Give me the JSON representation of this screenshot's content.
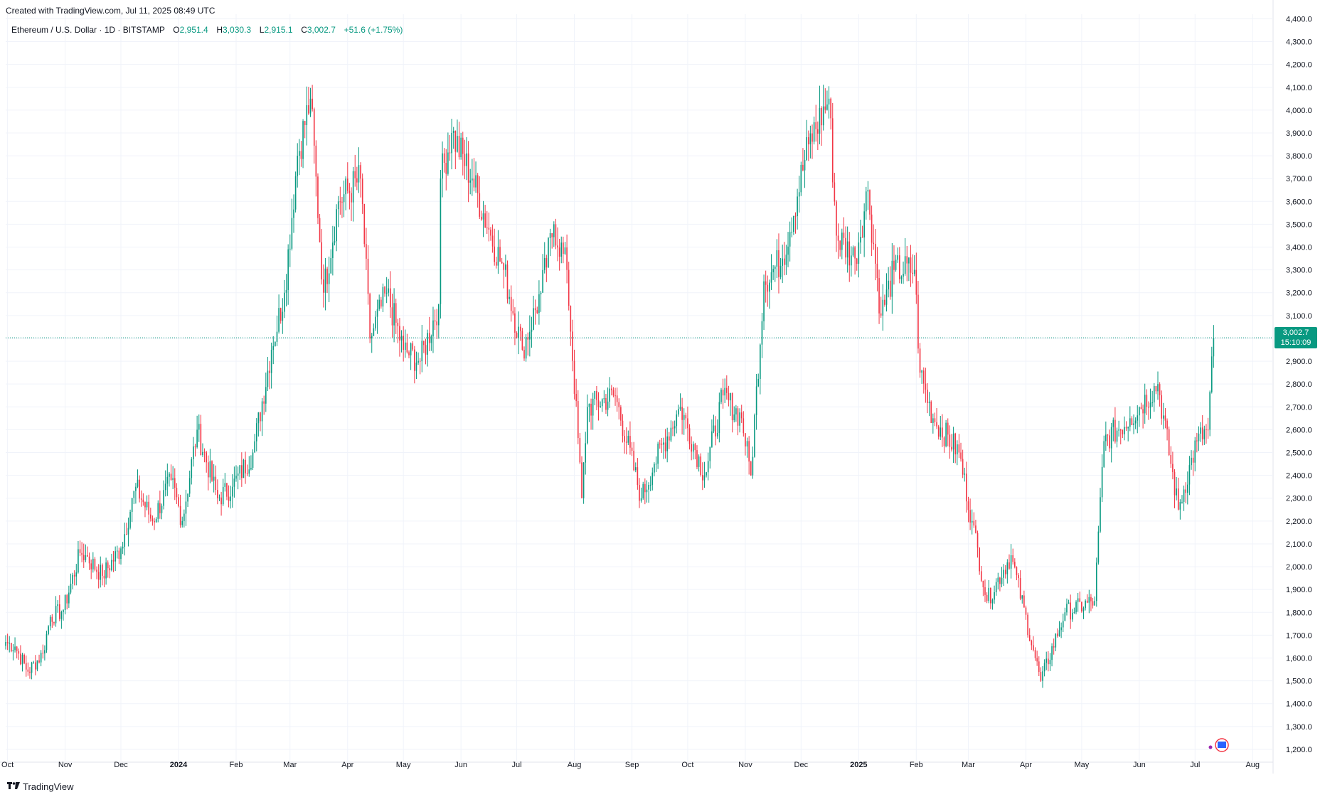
{
  "header": {
    "created_text": "Created with TradingView.com, Jul 11, 2025 08:49 UTC"
  },
  "legend": {
    "symbol": "Ethereum / U.S. Dollar · 1D · BITSTAMP",
    "open_label": "O",
    "open": "2,951.4",
    "high_label": "H",
    "high": "3,030.3",
    "low_label": "L",
    "low": "2,915.1",
    "close_label": "C",
    "close": "3,002.7",
    "change": "+51.6 (+1.75%)"
  },
  "price_badge": {
    "price": "3,002.7",
    "countdown": "15:10:09"
  },
  "footer": {
    "brand": "TradingView"
  },
  "colors": {
    "up": "#089981",
    "down": "#f23645",
    "grid": "#f0f3fa",
    "last_price_line": "#089981"
  },
  "chart_data": {
    "type": "candlestick",
    "symbol": "ETHUSD",
    "exchange": "BITSTAMP",
    "interval": "1D",
    "ylim": [
      1150,
      4420
    ],
    "y_ticks": [
      "4,400.0",
      "4,300.0",
      "4,200.0",
      "4,100.0",
      "4,000.0",
      "3,900.0",
      "3,800.0",
      "3,700.0",
      "3,600.0",
      "3,500.0",
      "3,400.0",
      "3,300.0",
      "3,200.0",
      "3,100.0",
      "3,000.0",
      "2,900.0",
      "2,800.0",
      "2,700.0",
      "2,600.0",
      "2,500.0",
      "2,400.0",
      "2,300.0",
      "2,200.0",
      "2,100.0",
      "2,000.0",
      "1,900.0",
      "1,800.0",
      "1,700.0",
      "1,600.0",
      "1,500.0",
      "1,400.0",
      "1,300.0",
      "1,200.0"
    ],
    "x_ticks": [
      {
        "label": "Oct",
        "date": "2023-10-01"
      },
      {
        "label": "Nov",
        "date": "2023-11-01"
      },
      {
        "label": "Dec",
        "date": "2023-12-01"
      },
      {
        "label": "2024",
        "date": "2024-01-01",
        "bold": true
      },
      {
        "label": "Feb",
        "date": "2024-02-01"
      },
      {
        "label": "Mar",
        "date": "2024-03-01"
      },
      {
        "label": "Apr",
        "date": "2024-04-01"
      },
      {
        "label": "May",
        "date": "2024-05-01"
      },
      {
        "label": "Jun",
        "date": "2024-06-01"
      },
      {
        "label": "Jul",
        "date": "2024-07-01"
      },
      {
        "label": "Aug",
        "date": "2024-08-01"
      },
      {
        "label": "Sep",
        "date": "2024-09-01"
      },
      {
        "label": "Oct",
        "date": "2024-10-01"
      },
      {
        "label": "Nov",
        "date": "2024-11-01"
      },
      {
        "label": "Dec",
        "date": "2024-12-01"
      },
      {
        "label": "2025",
        "date": "2025-01-01",
        "bold": true
      },
      {
        "label": "Feb",
        "date": "2025-02-01"
      },
      {
        "label": "Mar",
        "date": "2025-03-01"
      },
      {
        "label": "Apr",
        "date": "2025-04-01"
      },
      {
        "label": "May",
        "date": "2025-05-01"
      },
      {
        "label": "Jun",
        "date": "2025-06-01"
      },
      {
        "label": "Jul",
        "date": "2025-07-01"
      },
      {
        "label": "Aug",
        "date": "2025-08-01"
      }
    ],
    "first_date": "2023-09-30",
    "last_date": "2025-07-11",
    "last_price": 3002.7,
    "close_anchors": [
      [
        "2023-09-30",
        1670
      ],
      [
        "2023-10-05",
        1650
      ],
      [
        "2023-10-12",
        1540
      ],
      [
        "2023-10-20",
        1620
      ],
      [
        "2023-10-24",
        1780
      ],
      [
        "2023-10-31",
        1810
      ],
      [
        "2023-11-09",
        2060
      ],
      [
        "2023-11-12",
        2050
      ],
      [
        "2023-11-21",
        1960
      ],
      [
        "2023-12-01",
        2080
      ],
      [
        "2023-12-09",
        2350
      ],
      [
        "2023-12-18",
        2200
      ],
      [
        "2023-12-28",
        2380
      ],
      [
        "2024-01-03",
        2200
      ],
      [
        "2024-01-11",
        2600
      ],
      [
        "2024-01-22",
        2300
      ],
      [
        "2024-01-30",
        2350
      ],
      [
        "2024-02-10",
        2500
      ],
      [
        "2024-02-20",
        2950
      ],
      [
        "2024-02-27",
        3200
      ],
      [
        "2024-03-05",
        3800
      ],
      [
        "2024-03-12",
        4050
      ],
      [
        "2024-03-19",
        3200
      ],
      [
        "2024-03-27",
        3600
      ],
      [
        "2024-04-08",
        3700
      ],
      [
        "2024-04-13",
        3000
      ],
      [
        "2024-04-22",
        3200
      ],
      [
        "2024-05-01",
        2950
      ],
      [
        "2024-05-10",
        2900
      ],
      [
        "2024-05-20",
        3150
      ],
      [
        "2024-05-21",
        3700
      ],
      [
        "2024-05-27",
        3900
      ],
      [
        "2024-06-07",
        3700
      ],
      [
        "2024-06-17",
        3450
      ],
      [
        "2024-06-24",
        3300
      ],
      [
        "2024-07-04",
        2950
      ],
      [
        "2024-07-14",
        3200
      ],
      [
        "2024-07-21",
        3500
      ],
      [
        "2024-07-28",
        3300
      ],
      [
        "2024-08-05",
        2300
      ],
      [
        "2024-08-08",
        2700
      ],
      [
        "2024-08-23",
        2750
      ],
      [
        "2024-09-06",
        2300
      ],
      [
        "2024-09-13",
        2450
      ],
      [
        "2024-09-27",
        2700
      ],
      [
        "2024-10-10",
        2400
      ],
      [
        "2024-10-20",
        2750
      ],
      [
        "2024-10-30",
        2650
      ],
      [
        "2024-11-04",
        2400
      ],
      [
        "2024-11-11",
        3250
      ],
      [
        "2024-11-21",
        3350
      ],
      [
        "2024-12-05",
        3850
      ],
      [
        "2024-12-16",
        4050
      ],
      [
        "2024-12-20",
        3450
      ],
      [
        "2024-12-30",
        3350
      ],
      [
        "2025-01-06",
        3650
      ],
      [
        "2025-01-13",
        3100
      ],
      [
        "2025-01-20",
        3300
      ],
      [
        "2025-01-31",
        3300
      ],
      [
        "2025-02-03",
        2850
      ],
      [
        "2025-02-10",
        2650
      ],
      [
        "2025-02-24",
        2500
      ],
      [
        "2025-03-03",
        2200
      ],
      [
        "2025-03-11",
        1850
      ],
      [
        "2025-03-24",
        2050
      ],
      [
        "2025-04-06",
        1600
      ],
      [
        "2025-04-09",
        1500
      ],
      [
        "2025-04-22",
        1800
      ],
      [
        "2025-05-08",
        1850
      ],
      [
        "2025-05-13",
        2550
      ],
      [
        "2025-05-27",
        2650
      ],
      [
        "2025-06-11",
        2800
      ],
      [
        "2025-06-22",
        2250
      ],
      [
        "2025-07-02",
        2550
      ],
      [
        "2025-07-08",
        2600
      ],
      [
        "2025-07-11",
        3002.7
      ]
    ]
  }
}
